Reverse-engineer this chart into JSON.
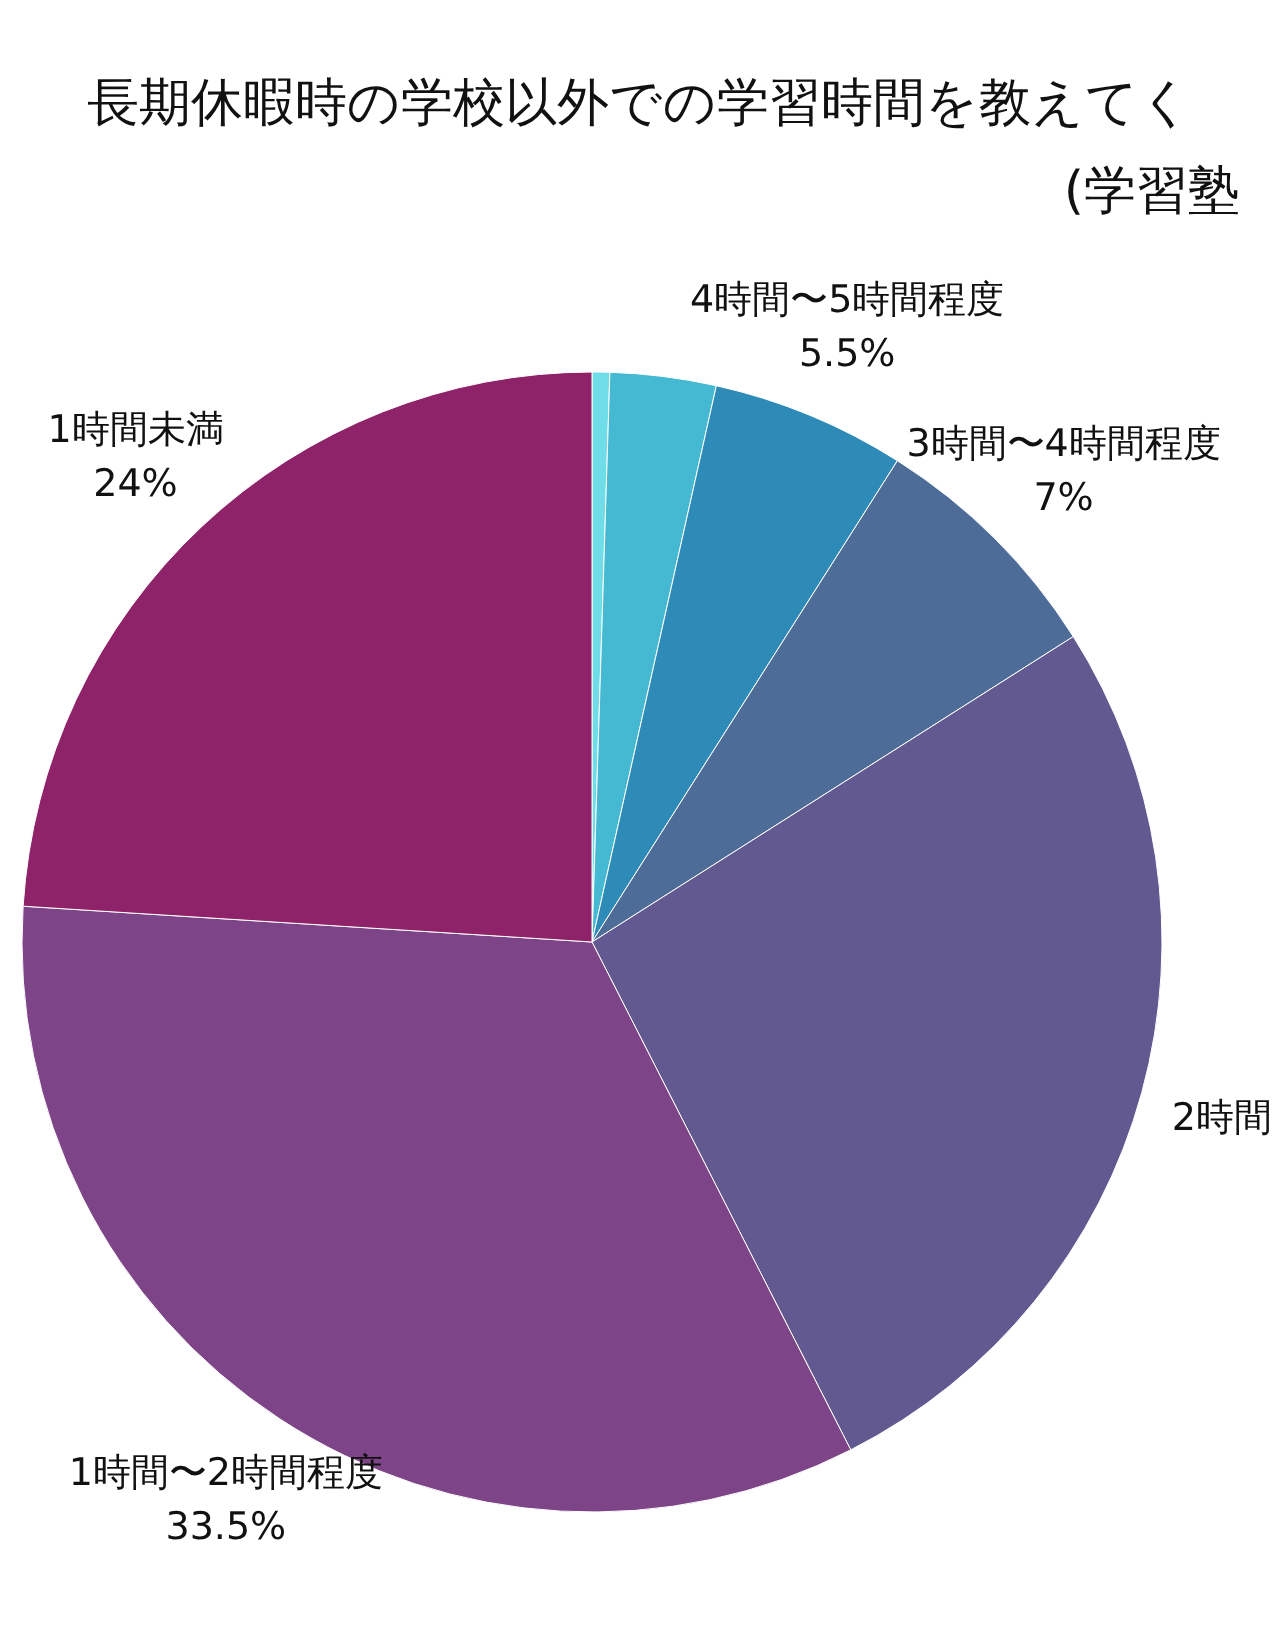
{
  "chart_data": {
    "type": "pie",
    "title": "長期休暇時の学校以外での学習時間を教えてく",
    "subtitle": "(学習塾",
    "categories": [
      null,
      null,
      "4時間〜5時間程度",
      "3時間〜4時間程度",
      "2時間",
      "1時間〜2時間程度",
      "1時間未満"
    ],
    "values": [
      0.5,
      3,
      5.5,
      7,
      26.5,
      33.5,
      24
    ],
    "value_labels": [
      null,
      null,
      "5.5%",
      "7%",
      null,
      "33.5%",
      "24%"
    ],
    "colors": [
      "#6fdde8",
      "#45b8d2",
      "#2e8bb8",
      "#4e6c98",
      "#625990",
      "#7e4488",
      "#8e2369"
    ]
  }
}
